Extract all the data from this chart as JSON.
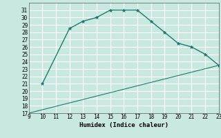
{
  "title": "",
  "xlabel": "Humidex (Indice chaleur)",
  "ylabel": "",
  "line1_x": [
    10,
    12,
    13,
    14,
    15,
    16,
    17,
    18,
    19,
    20,
    21,
    22,
    23
  ],
  "line1_y": [
    21,
    28.5,
    29.5,
    30,
    31,
    31,
    31,
    29.5,
    28,
    26.5,
    26,
    25,
    23.5
  ],
  "line2_x": [
    9,
    23
  ],
  "line2_y": [
    17,
    23.5
  ],
  "xlim": [
    9,
    23
  ],
  "ylim": [
    17,
    32
  ],
  "xticks": [
    9,
    10,
    11,
    12,
    13,
    14,
    15,
    16,
    17,
    18,
    19,
    20,
    21,
    22,
    23
  ],
  "yticks": [
    17,
    18,
    19,
    20,
    21,
    22,
    23,
    24,
    25,
    26,
    27,
    28,
    29,
    30,
    31
  ],
  "line_color": "#1a7a6e",
  "bg_color": "#c8e8e0",
  "grid_color": "#ffffff",
  "marker": "*",
  "tick_fontsize": 5.5,
  "xlabel_fontsize": 6.5
}
